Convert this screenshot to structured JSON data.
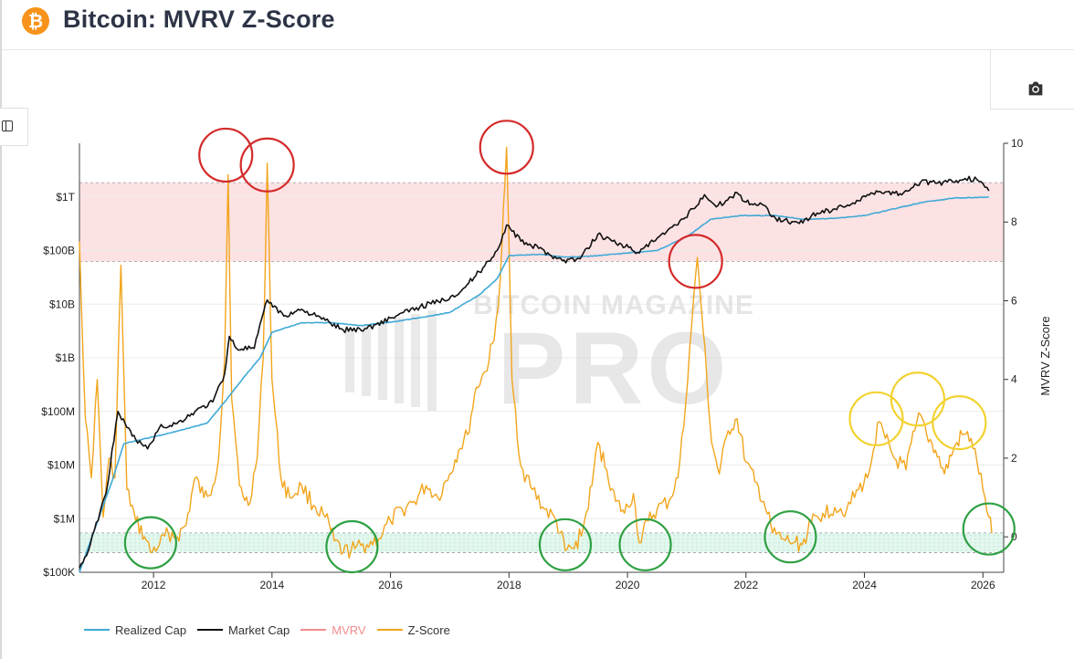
{
  "header": {
    "title": "Bitcoin: MVRV Z-Score",
    "coin_symbol": "₿"
  },
  "toolbar": {
    "camera_icon": "camera-icon",
    "side_icon": "panel-toggle-icon"
  },
  "chart_data": {
    "type": "line",
    "title": "Bitcoin: MVRV Z-Score",
    "x_ticks": [
      "2012",
      "2014",
      "2016",
      "2018",
      "2020",
      "2022",
      "2024",
      "2026"
    ],
    "x_range": [
      2010.75,
      2026.35
    ],
    "left_axis": {
      "scale": "log",
      "range": [
        100000,
        10000000000000
      ],
      "ticks": [
        {
          "value": 100000,
          "label": "$100K"
        },
        {
          "value": 1000000,
          "label": "$1M"
        },
        {
          "value": 10000000,
          "label": "$10M"
        },
        {
          "value": 100000000,
          "label": "$100M"
        },
        {
          "value": 1000000000,
          "label": "$1B"
        },
        {
          "value": 10000000000,
          "label": "$10B"
        },
        {
          "value": 100000000000,
          "label": "$100B"
        },
        {
          "value": 1000000000000,
          "label": "$1T"
        }
      ]
    },
    "right_axis": {
      "label": "MVRV Z-Score",
      "range": [
        -0.9,
        10
      ],
      "ticks": [
        {
          "value": 0,
          "label": "0"
        },
        {
          "value": 2,
          "label": "2"
        },
        {
          "value": 4,
          "label": "4"
        },
        {
          "value": 6,
          "label": "6"
        },
        {
          "value": 8,
          "label": "8"
        },
        {
          "value": 10,
          "label": "10"
        }
      ]
    },
    "bands": [
      {
        "name": "overvalued-zone",
        "from": 7,
        "to": 9,
        "color": "#fde2e4"
      },
      {
        "name": "undervalued-zone",
        "from": -0.4,
        "to": 0.1,
        "color": "#e3f7ee"
      }
    ],
    "series": [
      {
        "name": "Z-Score",
        "axis": "right",
        "color": "#f2a51c",
        "points": [
          [
            2010.75,
            7.5
          ],
          [
            2010.85,
            3.0
          ],
          [
            2010.95,
            1.5
          ],
          [
            2011.05,
            4.0
          ],
          [
            2011.15,
            0.5
          ],
          [
            2011.25,
            2.0
          ],
          [
            2011.35,
            1.5
          ],
          [
            2011.45,
            6.9
          ],
          [
            2011.55,
            1.2
          ],
          [
            2011.7,
            0.4
          ],
          [
            2011.85,
            0.0
          ],
          [
            2011.95,
            -0.4
          ],
          [
            2012.1,
            -0.2
          ],
          [
            2012.25,
            0.1
          ],
          [
            2012.4,
            0.0
          ],
          [
            2012.55,
            0.3
          ],
          [
            2012.7,
            1.5
          ],
          [
            2012.85,
            1.0
          ],
          [
            2013.0,
            1.3
          ],
          [
            2013.1,
            2.0
          ],
          [
            2013.2,
            4.5
          ],
          [
            2013.26,
            9.2
          ],
          [
            2013.32,
            3.5
          ],
          [
            2013.45,
            1.3
          ],
          [
            2013.6,
            0.8
          ],
          [
            2013.75,
            2.0
          ],
          [
            2013.85,
            4.5
          ],
          [
            2013.92,
            9.5
          ],
          [
            2014.0,
            4.0
          ],
          [
            2014.15,
            1.5
          ],
          [
            2014.3,
            1.0
          ],
          [
            2014.5,
            1.3
          ],
          [
            2014.7,
            0.8
          ],
          [
            2014.9,
            0.5
          ],
          [
            2015.05,
            -0.1
          ],
          [
            2015.2,
            -0.4
          ],
          [
            2015.4,
            -0.3
          ],
          [
            2015.6,
            -0.2
          ],
          [
            2015.8,
            -0.05
          ],
          [
            2016.0,
            0.4
          ],
          [
            2016.2,
            0.7
          ],
          [
            2016.4,
            0.9
          ],
          [
            2016.6,
            1.3
          ],
          [
            2016.8,
            1.0
          ],
          [
            2017.0,
            1.6
          ],
          [
            2017.15,
            2.2
          ],
          [
            2017.3,
            2.6
          ],
          [
            2017.45,
            3.8
          ],
          [
            2017.6,
            4.2
          ],
          [
            2017.75,
            5.0
          ],
          [
            2017.85,
            6.5
          ],
          [
            2017.96,
            9.9
          ],
          [
            2018.05,
            4.0
          ],
          [
            2018.2,
            1.8
          ],
          [
            2018.4,
            1.2
          ],
          [
            2018.6,
            0.7
          ],
          [
            2018.8,
            0.4
          ],
          [
            2018.95,
            -0.35
          ],
          [
            2019.1,
            -0.3
          ],
          [
            2019.25,
            0.2
          ],
          [
            2019.4,
            1.3
          ],
          [
            2019.5,
            2.4
          ],
          [
            2019.65,
            1.7
          ],
          [
            2019.8,
            0.9
          ],
          [
            2019.95,
            0.6
          ],
          [
            2020.1,
            1.1
          ],
          [
            2020.2,
            -0.15
          ],
          [
            2020.35,
            0.4
          ],
          [
            2020.5,
            0.7
          ],
          [
            2020.7,
            0.9
          ],
          [
            2020.85,
            1.5
          ],
          [
            2020.95,
            2.8
          ],
          [
            2021.05,
            4.8
          ],
          [
            2021.18,
            7.1
          ],
          [
            2021.28,
            5.2
          ],
          [
            2021.42,
            2.4
          ],
          [
            2021.55,
            1.6
          ],
          [
            2021.7,
            2.7
          ],
          [
            2021.85,
            3.0
          ],
          [
            2022.0,
            1.9
          ],
          [
            2022.15,
            1.4
          ],
          [
            2022.3,
            0.9
          ],
          [
            2022.45,
            0.1
          ],
          [
            2022.6,
            -0.05
          ],
          [
            2022.8,
            -0.15
          ],
          [
            2022.95,
            -0.2
          ],
          [
            2023.1,
            0.35
          ],
          [
            2023.3,
            0.6
          ],
          [
            2023.5,
            0.75
          ],
          [
            2023.7,
            0.7
          ],
          [
            2023.9,
            1.2
          ],
          [
            2024.05,
            1.5
          ],
          [
            2024.15,
            2.2
          ],
          [
            2024.22,
            2.9
          ],
          [
            2024.35,
            2.5
          ],
          [
            2024.5,
            2.0
          ],
          [
            2024.7,
            1.7
          ],
          [
            2024.85,
            2.7
          ],
          [
            2024.95,
            3.1
          ],
          [
            2025.05,
            2.6
          ],
          [
            2025.2,
            2.2
          ],
          [
            2025.35,
            1.6
          ],
          [
            2025.5,
            2.2
          ],
          [
            2025.65,
            2.6
          ],
          [
            2025.8,
            2.5
          ],
          [
            2025.9,
            1.9
          ],
          [
            2026.0,
            1.2
          ],
          [
            2026.1,
            0.5
          ],
          [
            2026.15,
            0.1
          ]
        ]
      },
      {
        "name": "Market Cap",
        "axis": "left",
        "color": "#111111",
        "points": [
          [
            2010.75,
            120000
          ],
          [
            2010.9,
            250000
          ],
          [
            2011.0,
            600000
          ],
          [
            2011.2,
            3000000
          ],
          [
            2011.4,
            100000000
          ],
          [
            2011.55,
            50000000
          ],
          [
            2011.7,
            30000000
          ],
          [
            2011.9,
            20000000
          ],
          [
            2012.1,
            50000000
          ],
          [
            2012.4,
            60000000
          ],
          [
            2012.7,
            100000000
          ],
          [
            2013.0,
            150000000
          ],
          [
            2013.2,
            500000000
          ],
          [
            2013.28,
            2500000000
          ],
          [
            2013.4,
            1500000000
          ],
          [
            2013.7,
            1500000000
          ],
          [
            2013.92,
            12000000000
          ],
          [
            2014.2,
            6000000000
          ],
          [
            2014.5,
            8000000000
          ],
          [
            2014.9,
            5000000000
          ],
          [
            2015.2,
            3300000000
          ],
          [
            2015.6,
            3500000000
          ],
          [
            2016.0,
            5500000000
          ],
          [
            2016.5,
            9000000000
          ],
          [
            2016.9,
            12000000000
          ],
          [
            2017.2,
            18000000000
          ],
          [
            2017.5,
            40000000000
          ],
          [
            2017.8,
            100000000000
          ],
          [
            2017.96,
            300000000000
          ],
          [
            2018.2,
            150000000000
          ],
          [
            2018.5,
            110000000000
          ],
          [
            2018.9,
            65000000000
          ],
          [
            2019.2,
            70000000000
          ],
          [
            2019.5,
            200000000000
          ],
          [
            2019.9,
            130000000000
          ],
          [
            2020.2,
            90000000000
          ],
          [
            2020.5,
            170000000000
          ],
          [
            2020.85,
            300000000000
          ],
          [
            2021.1,
            600000000000
          ],
          [
            2021.3,
            1100000000000
          ],
          [
            2021.5,
            650000000000
          ],
          [
            2021.85,
            1200000000000
          ],
          [
            2022.0,
            800000000000
          ],
          [
            2022.3,
            700000000000
          ],
          [
            2022.5,
            400000000000
          ],
          [
            2022.9,
            320000000000
          ],
          [
            2023.2,
            500000000000
          ],
          [
            2023.5,
            600000000000
          ],
          [
            2023.9,
            850000000000
          ],
          [
            2024.2,
            1300000000000
          ],
          [
            2024.6,
            1150000000000
          ],
          [
            2024.95,
            1900000000000
          ],
          [
            2025.2,
            1800000000000
          ],
          [
            2025.4,
            1900000000000
          ],
          [
            2025.7,
            2200000000000
          ],
          [
            2025.9,
            2100000000000
          ],
          [
            2026.1,
            1300000000000
          ]
        ]
      },
      {
        "name": "Realized Cap",
        "axis": "left",
        "color": "#3fa9d6",
        "points": [
          [
            2010.75,
            100000
          ],
          [
            2011.0,
            600000
          ],
          [
            2011.3,
            5000000
          ],
          [
            2011.5,
            25000000
          ],
          [
            2011.8,
            30000000
          ],
          [
            2012.3,
            40000000
          ],
          [
            2012.9,
            60000000
          ],
          [
            2013.2,
            150000000
          ],
          [
            2013.5,
            400000000
          ],
          [
            2013.8,
            1000000000
          ],
          [
            2014.0,
            3000000000
          ],
          [
            2014.5,
            4500000000
          ],
          [
            2015.0,
            4500000000
          ],
          [
            2015.5,
            4000000000
          ],
          [
            2016.0,
            4600000000
          ],
          [
            2016.5,
            5600000000
          ],
          [
            2017.0,
            7000000000
          ],
          [
            2017.5,
            15000000000
          ],
          [
            2017.8,
            30000000000
          ],
          [
            2018.0,
            80000000000
          ],
          [
            2018.5,
            85000000000
          ],
          [
            2019.0,
            75000000000
          ],
          [
            2019.5,
            80000000000
          ],
          [
            2020.0,
            90000000000
          ],
          [
            2020.5,
            100000000000
          ],
          [
            2021.0,
            180000000000
          ],
          [
            2021.4,
            380000000000
          ],
          [
            2021.9,
            450000000000
          ],
          [
            2022.5,
            450000000000
          ],
          [
            2023.0,
            380000000000
          ],
          [
            2023.5,
            400000000000
          ],
          [
            2024.0,
            450000000000
          ],
          [
            2024.5,
            600000000000
          ],
          [
            2025.0,
            800000000000
          ],
          [
            2025.5,
            950000000000
          ],
          [
            2026.1,
            1000000000000
          ]
        ]
      },
      {
        "name": "MVRV",
        "axis": "left",
        "color": "#f28b8b",
        "points": []
      }
    ],
    "legend": {
      "position": "bottom-left",
      "items": [
        {
          "name": "Realized Cap",
          "color": "#3fa9d6"
        },
        {
          "name": "Market Cap",
          "color": "#111111"
        },
        {
          "name": "MVRV",
          "color": "#f28b8b"
        },
        {
          "name": "Z-Score",
          "color": "#f2a51c"
        }
      ]
    },
    "annotations": {
      "red_circles": [
        {
          "x": 2013.22,
          "y": 9.7
        },
        {
          "x": 2013.92,
          "y": 9.45
        },
        {
          "x": 2017.96,
          "y": 9.9
        },
        {
          "x": 2021.15,
          "y": 7.0
        }
      ],
      "green_circles": [
        {
          "x": 2011.95,
          "y": -0.15
        },
        {
          "x": 2015.35,
          "y": -0.25
        },
        {
          "x": 2018.95,
          "y": -0.2
        },
        {
          "x": 2020.3,
          "y": -0.2
        },
        {
          "x": 2022.75,
          "y": 0.0
        },
        {
          "x": 2026.1,
          "y": 0.2
        }
      ],
      "yellow_circles": [
        {
          "x": 2024.2,
          "y": 3.0
        },
        {
          "x": 2024.9,
          "y": 3.5
        },
        {
          "x": 2025.6,
          "y": 2.9
        }
      ]
    },
    "watermark": {
      "line1": "BITCOIN MAGAZINE",
      "line2": "PRO"
    }
  }
}
